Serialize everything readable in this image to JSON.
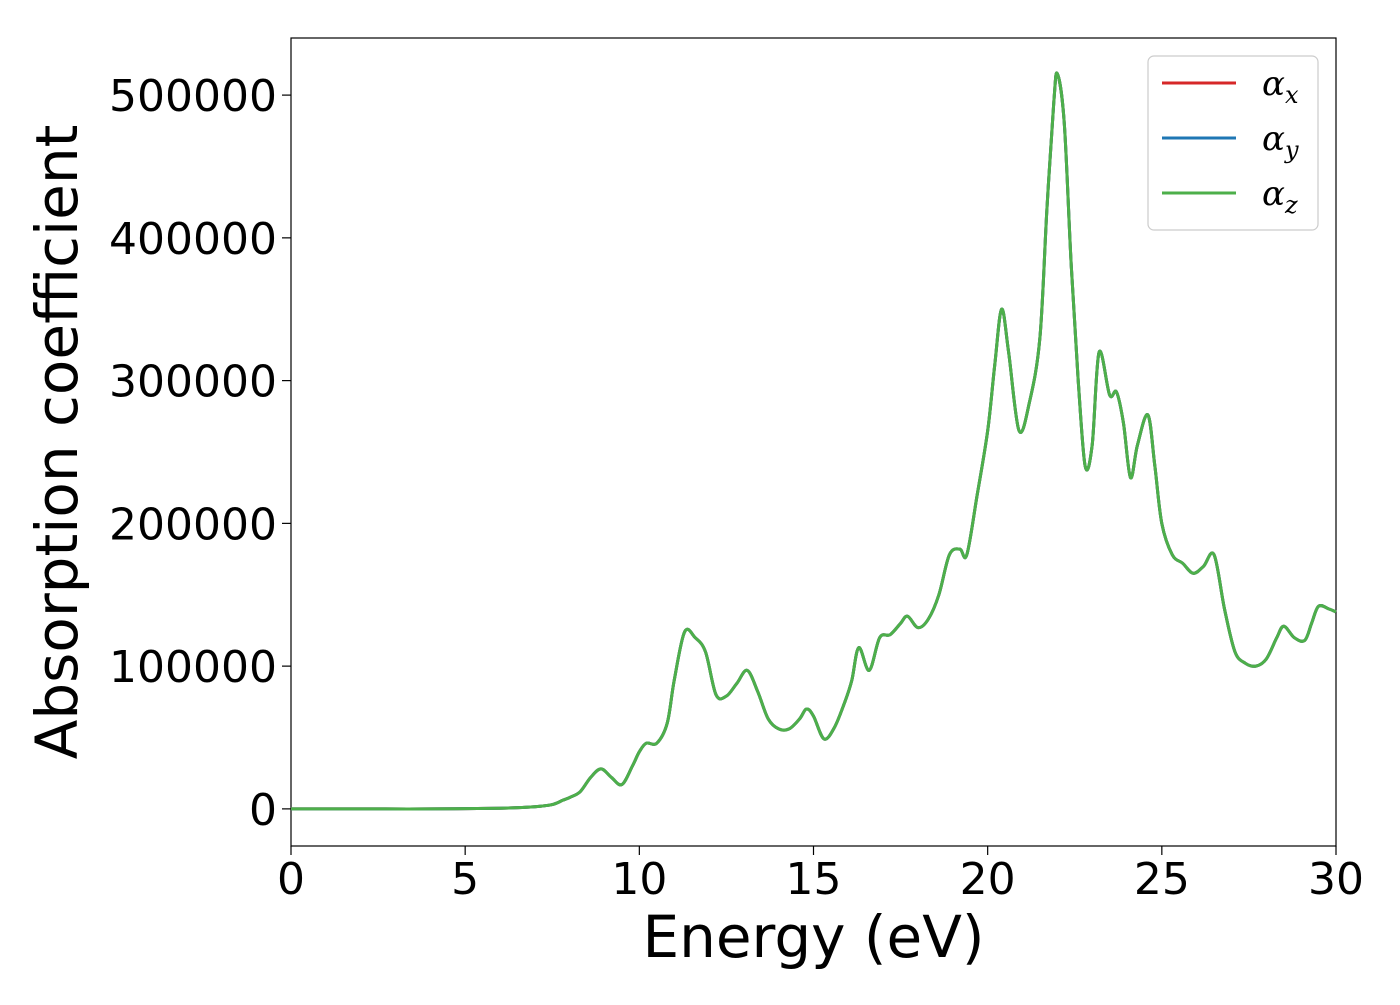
{
  "chart_data": {
    "type": "line",
    "xlabel": "Energy (eV)",
    "ylabel": "Absorption coefficient",
    "xlim": [
      0,
      30
    ],
    "ylim": [
      -26000,
      540000
    ],
    "x_ticks": [
      "0",
      "5",
      "10",
      "15",
      "20",
      "25",
      "30"
    ],
    "y_ticks": [
      "0",
      "100000",
      "200000",
      "300000",
      "400000",
      "500000"
    ],
    "grid": false,
    "legend_position": "top-right",
    "series": [
      {
        "name": "α",
        "subscript": "x",
        "color": "#d62728"
      },
      {
        "name": "α",
        "subscript": "y",
        "color": "#1f77b4"
      },
      {
        "name": "α",
        "subscript": "z",
        "color": "#4daf4a"
      }
    ],
    "x": [
      0,
      2,
      4,
      6,
      7.0,
      7.5,
      7.8,
      8.0,
      8.3,
      8.6,
      8.9,
      9.2,
      9.5,
      9.8,
      10.0,
      10.2,
      10.5,
      10.8,
      11.0,
      11.3,
      11.6,
      11.9,
      12.2,
      12.5,
      12.8,
      13.1,
      13.4,
      13.7,
      14.0,
      14.3,
      14.6,
      14.8,
      15.0,
      15.3,
      15.6,
      15.9,
      16.1,
      16.3,
      16.6,
      16.9,
      17.2,
      17.5,
      17.7,
      18.0,
      18.3,
      18.6,
      18.9,
      19.2,
      19.4,
      19.7,
      20.0,
      20.2,
      20.4,
      20.6,
      20.9,
      21.2,
      21.5,
      21.7,
      21.9,
      22.0,
      22.2,
      22.4,
      22.6,
      22.8,
      23.0,
      23.2,
      23.5,
      23.7,
      23.9,
      24.1,
      24.3,
      24.6,
      24.8,
      25.0,
      25.3,
      25.6,
      25.9,
      26.2,
      26.5,
      26.8,
      27.1,
      27.4,
      27.7,
      28.0,
      28.3,
      28.5,
      28.8,
      29.1,
      29.3,
      29.5,
      29.8,
      30.0
    ],
    "y": [
      0,
      0,
      0,
      500,
      1500,
      3000,
      6000,
      8000,
      12000,
      22000,
      28000,
      22000,
      17000,
      30000,
      40000,
      46000,
      46000,
      60000,
      90000,
      124000,
      120000,
      110000,
      80000,
      79000,
      88000,
      97000,
      82000,
      63000,
      56000,
      56000,
      63000,
      70000,
      65000,
      49000,
      57000,
      75000,
      90000,
      113000,
      97000,
      120000,
      122000,
      130000,
      135000,
      127000,
      133000,
      150000,
      178000,
      182000,
      178000,
      220000,
      265000,
      310000,
      350000,
      320000,
      265000,
      285000,
      330000,
      420000,
      495000,
      515000,
      480000,
      380000,
      300000,
      240000,
      255000,
      320000,
      290000,
      292000,
      270000,
      232000,
      255000,
      276000,
      240000,
      200000,
      178000,
      172000,
      165000,
      170000,
      178000,
      140000,
      110000,
      102000,
      100000,
      105000,
      120000,
      128000,
      120000,
      118000,
      130000,
      142000,
      140000,
      138000
    ]
  }
}
